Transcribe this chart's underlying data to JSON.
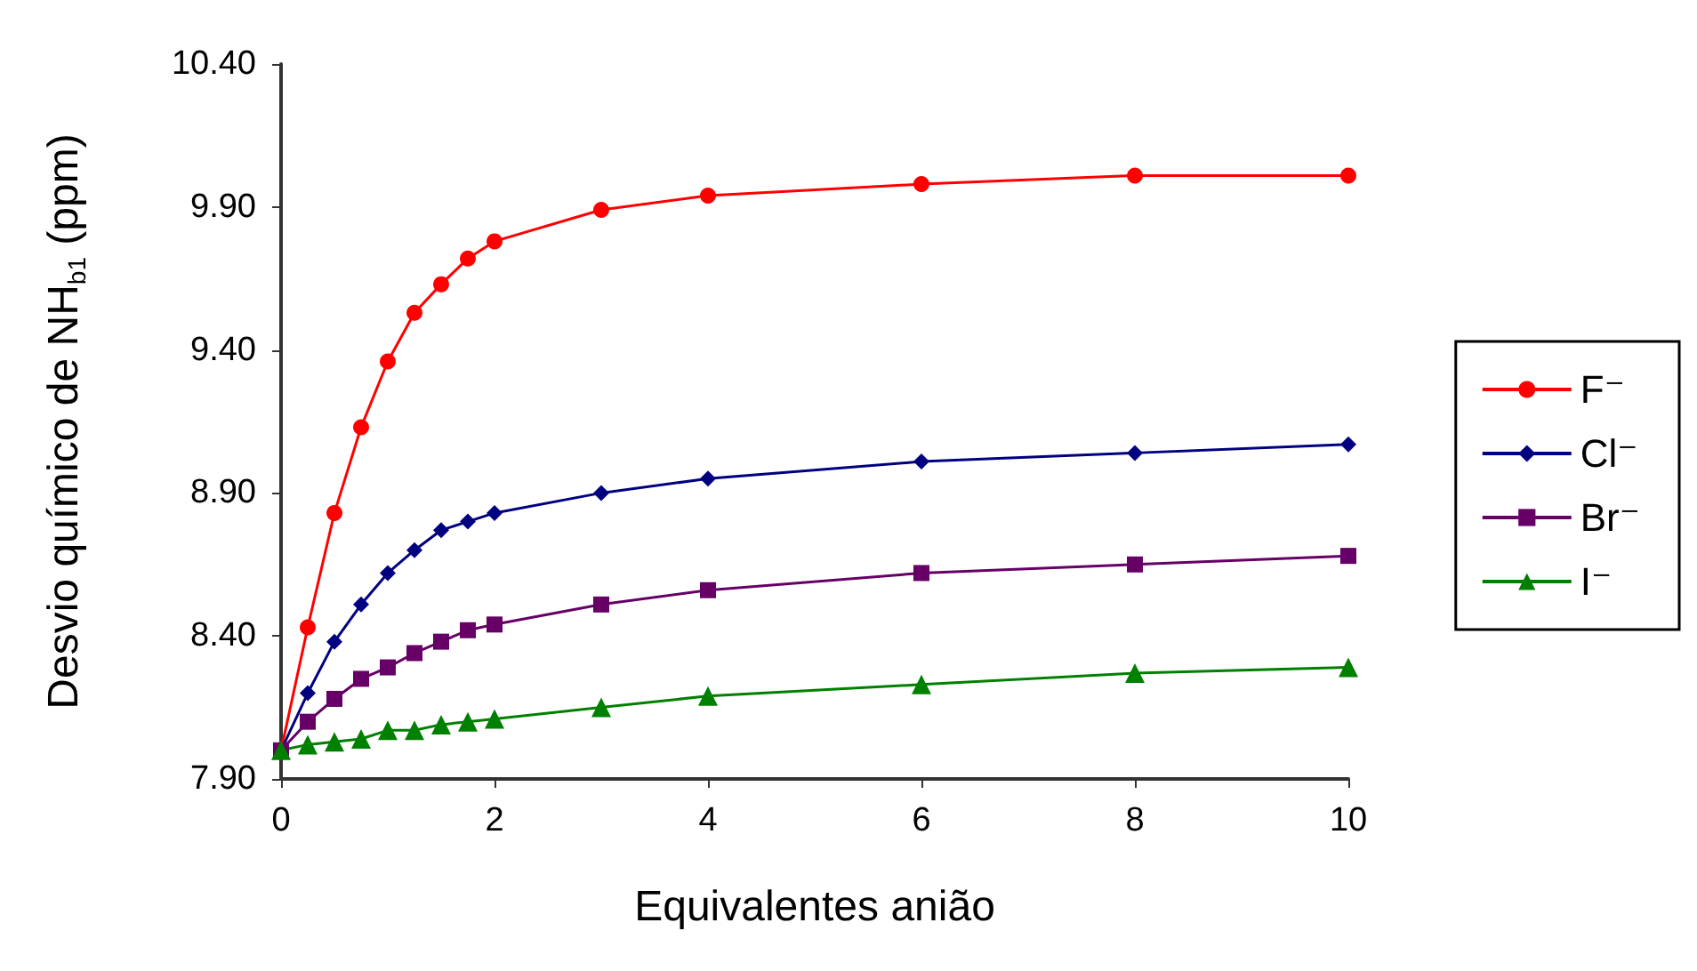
{
  "chart_data": {
    "type": "line",
    "xlabel": "Equivalentes anião",
    "ylabel": "Desvio químico de NH$_{b1}$ (ppm)",
    "x": [
      0,
      0.25,
      0.5,
      0.75,
      1,
      1.25,
      1.5,
      1.75,
      2,
      3,
      4,
      6,
      8,
      10
    ],
    "xlim": [
      0,
      10
    ],
    "xticks": [
      0,
      2,
      4,
      6,
      8,
      10
    ],
    "ylim": [
      7.9,
      10.4
    ],
    "yticks": [
      {
        "value": 7.9,
        "label": "7.90"
      },
      {
        "value": 8.4,
        "label": "8.40"
      },
      {
        "value": 8.9,
        "label": "8.90"
      },
      {
        "value": 9.4,
        "label": "9.40"
      },
      {
        "value": 9.9,
        "label": "9.90"
      },
      {
        "value": 10.4,
        "label": "10.40"
      }
    ],
    "grid": false,
    "legend": "right",
    "line_style": "solid",
    "series": [
      {
        "name": "F⁻",
        "color": "#ff0000",
        "marker": "circle",
        "values": [
          8.0,
          8.43,
          8.83,
          9.13,
          9.36,
          9.53,
          9.63,
          9.72,
          9.78,
          9.89,
          9.94,
          9.98,
          10.01,
          10.01
        ]
      },
      {
        "name": "Cl⁻",
        "color": "#000080",
        "marker": "diamond",
        "values": [
          8.0,
          8.2,
          8.38,
          8.51,
          8.62,
          8.7,
          8.77,
          8.8,
          8.83,
          8.9,
          8.95,
          9.01,
          9.04,
          9.07
        ]
      },
      {
        "name": "Br⁻",
        "color": "#660066",
        "marker": "square",
        "values": [
          8.0,
          8.1,
          8.18,
          8.25,
          8.29,
          8.34,
          8.38,
          8.42,
          8.44,
          8.51,
          8.56,
          8.62,
          8.65,
          8.68
        ]
      },
      {
        "name": "I⁻",
        "color": "#008000",
        "marker": "triangle",
        "values": [
          8.0,
          8.02,
          8.03,
          8.04,
          8.07,
          8.07,
          8.09,
          8.1,
          8.11,
          8.15,
          8.19,
          8.23,
          8.27,
          8.29
        ]
      }
    ]
  }
}
